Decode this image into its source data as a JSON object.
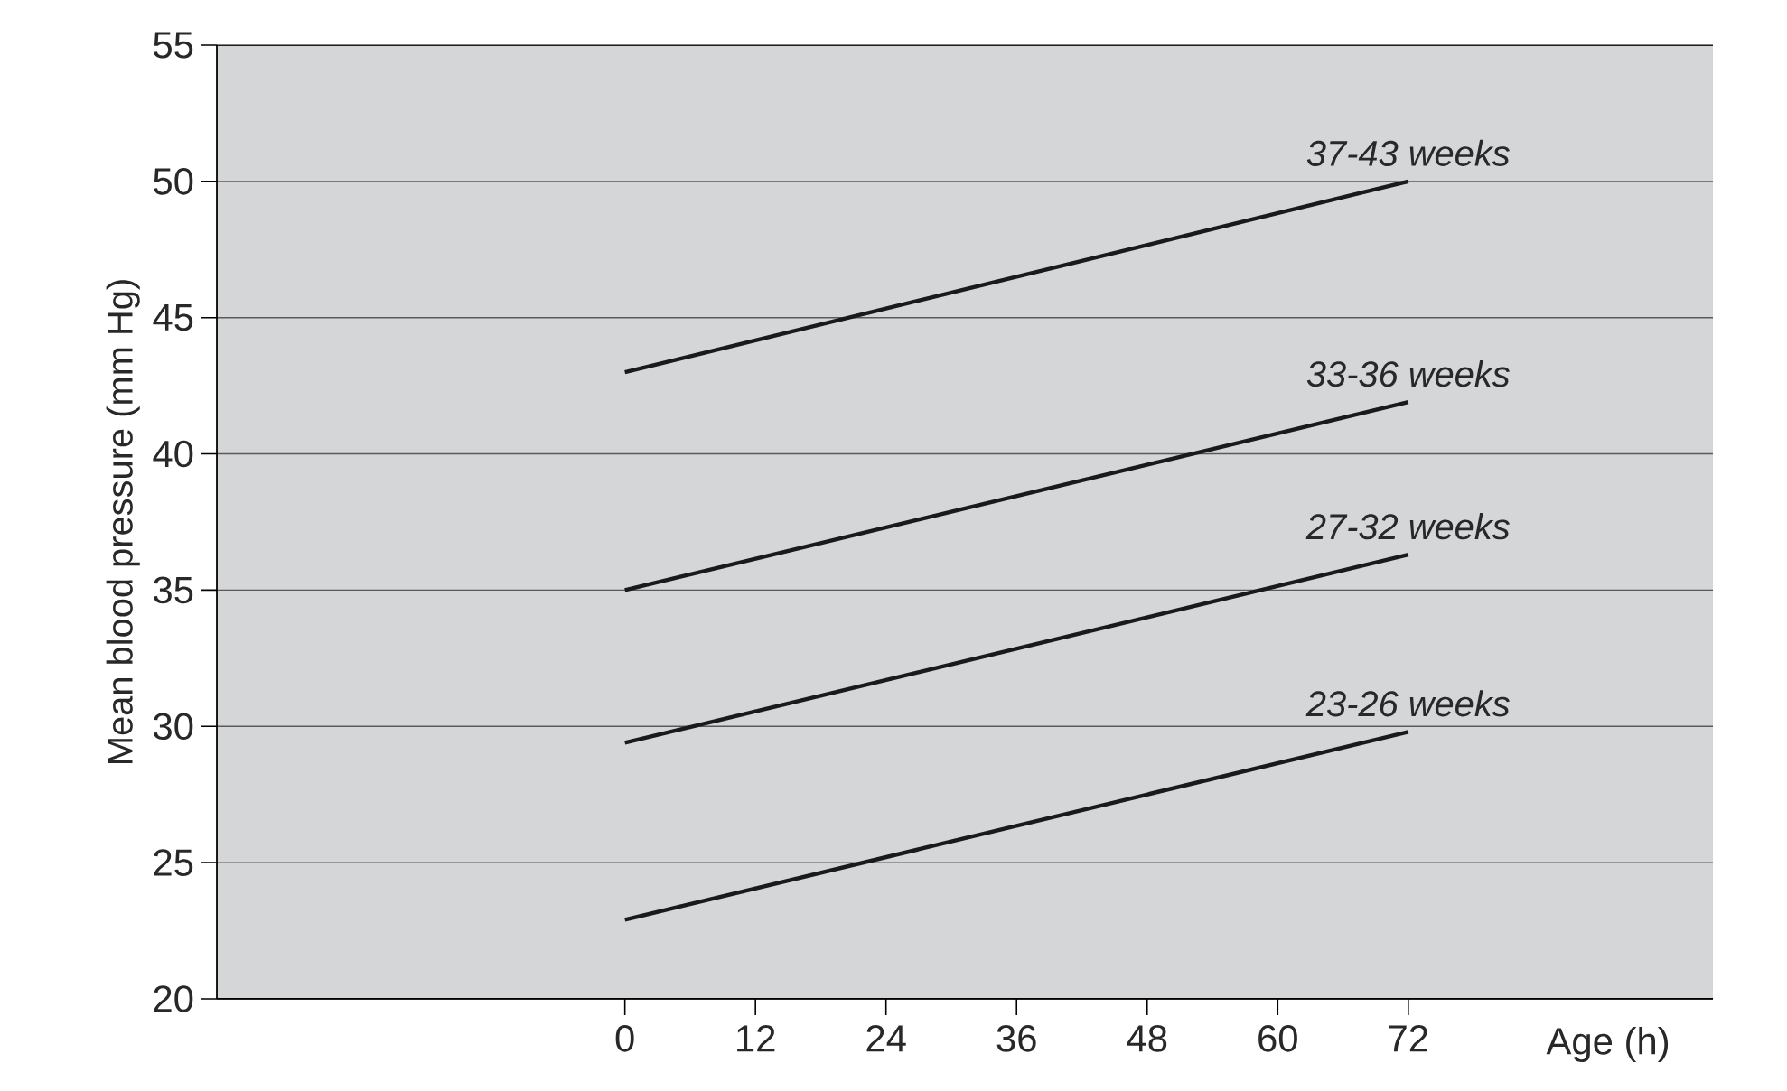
{
  "chart_data": {
    "type": "line",
    "xlabel": "Age (h)",
    "ylabel": "Mean blood pressure (mm Hg)",
    "x": [
      0,
      72
    ],
    "series": [
      {
        "name": "37-43 weeks",
        "color": "#1a1a1a",
        "values": [
          43,
          50
        ]
      },
      {
        "name": "33-36 weeks",
        "color": "#1a1a1a",
        "values": [
          35,
          41.9
        ]
      },
      {
        "name": "27-32 weeks",
        "color": "#1a1a1a",
        "values": [
          29.4,
          36.3
        ]
      },
      {
        "name": "23-26 weeks",
        "color": "#1a1a1a",
        "values": [
          22.9,
          29.8
        ]
      }
    ],
    "xlim": [
      -37.5,
      100
    ],
    "ylim": [
      20,
      55
    ],
    "xticks": [
      0,
      12,
      24,
      36,
      48,
      60,
      72
    ],
    "yticks": [
      20,
      25,
      30,
      35,
      40,
      45,
      50,
      55
    ],
    "grid": "y",
    "legend": false,
    "marker": "none",
    "line_style": "solid"
  }
}
